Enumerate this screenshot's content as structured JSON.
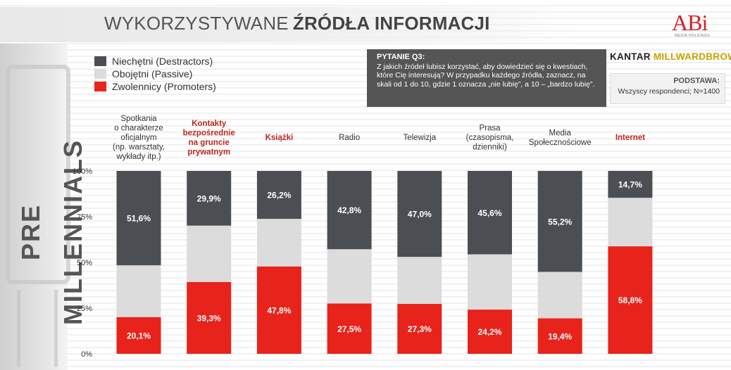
{
  "page": {
    "title_light": "WYKORZYSTYWANE",
    "title_bold": "ŹRÓDŁA INFORMACJI",
    "side_label": "PRE MILLENNIALS"
  },
  "legend": [
    {
      "label": "Niechętni (Destractors)",
      "color": "#4b4f54"
    },
    {
      "label": "Obojętni (Passive)",
      "color": "#dcdcdc"
    },
    {
      "label": "Zwolennicy (Promoters)",
      "color": "#e8231c"
    }
  ],
  "question": {
    "title": "PYTANIE Q3:",
    "text": "Z jakich źródeł lubisz korzystać, aby dowiedzieć się o kwestiach, które Cię interesują? W przypadku każdego źródła, zaznacz, na skali od 1 do 10, gdzie 1 oznacza „nie lubię”, a 10 – „bardzo lubię”."
  },
  "logos": {
    "abi": "ABi",
    "abi_sub": "MEDIA HOLDINGS",
    "kantar_a": "KANTAR ",
    "kantar_b": "MILLWARDBROWN"
  },
  "base": {
    "title": "PODSTAWA:",
    "text": "Wszyscy respondenci; N=1400"
  },
  "colors": {
    "destractors": "#4b4f54",
    "passive": "#dcdcdc",
    "promoters": "#e8231c",
    "highlight_label": "#c0261f",
    "normal_label": "#333333"
  },
  "chart_data": {
    "type": "bar",
    "stacked": true,
    "title": "",
    "xlabel": "",
    "ylabel": "",
    "ylim": [
      0,
      100
    ],
    "yticks": [
      "0%",
      "25%",
      "50%",
      "75%",
      "100%"
    ],
    "categories": [
      {
        "lines": [
          "Spotkania",
          "o charakterze",
          "oficjalnym",
          "(np. warsztaty,",
          "wykłady itp.)"
        ],
        "highlight": false
      },
      {
        "lines": [
          "Kontakty",
          "bezpośrednie",
          "na gruncie",
          "prywatnym"
        ],
        "highlight": true
      },
      {
        "lines": [
          "Książki"
        ],
        "highlight": true
      },
      {
        "lines": [
          "Radio"
        ],
        "highlight": false
      },
      {
        "lines": [
          "Telewizja"
        ],
        "highlight": false
      },
      {
        "lines": [
          "Prasa",
          "(czasopisma,",
          "dzienniki)"
        ],
        "highlight": false
      },
      {
        "lines": [
          "Media",
          "Społecznościowe"
        ],
        "highlight": false
      },
      {
        "lines": [
          "Internet"
        ],
        "highlight": true
      }
    ],
    "series": [
      {
        "name": "Zwolennicy (Promoters)",
        "values": [
          20.1,
          39.3,
          47.8,
          27.5,
          27.3,
          24.2,
          19.4,
          58.8
        ],
        "labels": [
          "20,1%",
          "39,3%",
          "47,8%",
          "27,5%",
          "27,3%",
          "24,2%",
          "19,4%",
          "58,8%"
        ]
      },
      {
        "name": "Obojętni (Passive)",
        "values": [
          28.3,
          30.8,
          26.0,
          29.7,
          25.7,
          30.2,
          25.4,
          26.5
        ],
        "labels": [
          "",
          "",
          "",
          "",
          "",
          "",
          "",
          ""
        ]
      },
      {
        "name": "Niechętni (Destractors)",
        "values": [
          51.6,
          29.9,
          26.2,
          42.8,
          47.0,
          45.6,
          55.2,
          14.7
        ],
        "labels": [
          "51,6%",
          "29,9%",
          "26,2%",
          "42,8%",
          "47,0%",
          "45,6%",
          "55,2%",
          "14,7%"
        ]
      }
    ]
  }
}
